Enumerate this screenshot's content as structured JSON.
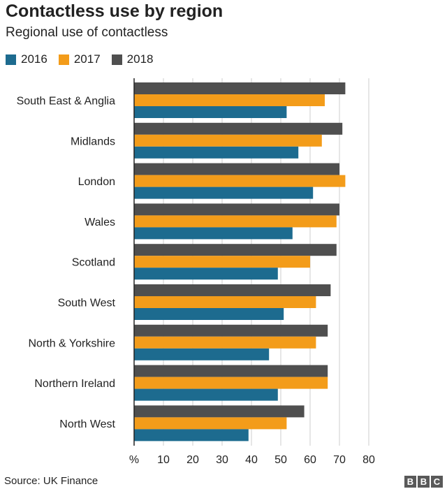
{
  "title": "Contactless use by region",
  "subtitle": "Regional use of contactless",
  "source": "Source: UK Finance",
  "logo": [
    "B",
    "B",
    "C"
  ],
  "colors": {
    "2016": "#1d6b8f",
    "2017": "#f39c1a",
    "2018": "#4f4f4f",
    "grid": "#cccccc",
    "axis": "#222222"
  },
  "chart_data": {
    "type": "bar",
    "orientation": "horizontal",
    "title": "Contactless use by region",
    "subtitle": "Regional use of contactless",
    "xlabel": "%",
    "ylabel": "",
    "xlim": [
      0,
      80
    ],
    "x_ticks": [
      10,
      20,
      30,
      40,
      50,
      60,
      70,
      80
    ],
    "x_unit_label": "%",
    "grid": true,
    "legend_position": "top-left",
    "categories": [
      "South East & Anglia",
      "Midlands",
      "London",
      "Wales",
      "Scotland",
      "South West",
      "North & Yorkshire",
      "Northern Ireland",
      "North West"
    ],
    "series": [
      {
        "name": "2016",
        "color": "#1d6b8f",
        "values": [
          52,
          56,
          61,
          54,
          49,
          51,
          46,
          49,
          39
        ]
      },
      {
        "name": "2017",
        "color": "#f39c1a",
        "values": [
          65,
          64,
          72,
          69,
          60,
          62,
          62,
          66,
          52
        ]
      },
      {
        "name": "2018",
        "color": "#4f4f4f",
        "values": [
          72,
          71,
          70,
          70,
          69,
          67,
          66,
          66,
          58
        ]
      }
    ]
  }
}
